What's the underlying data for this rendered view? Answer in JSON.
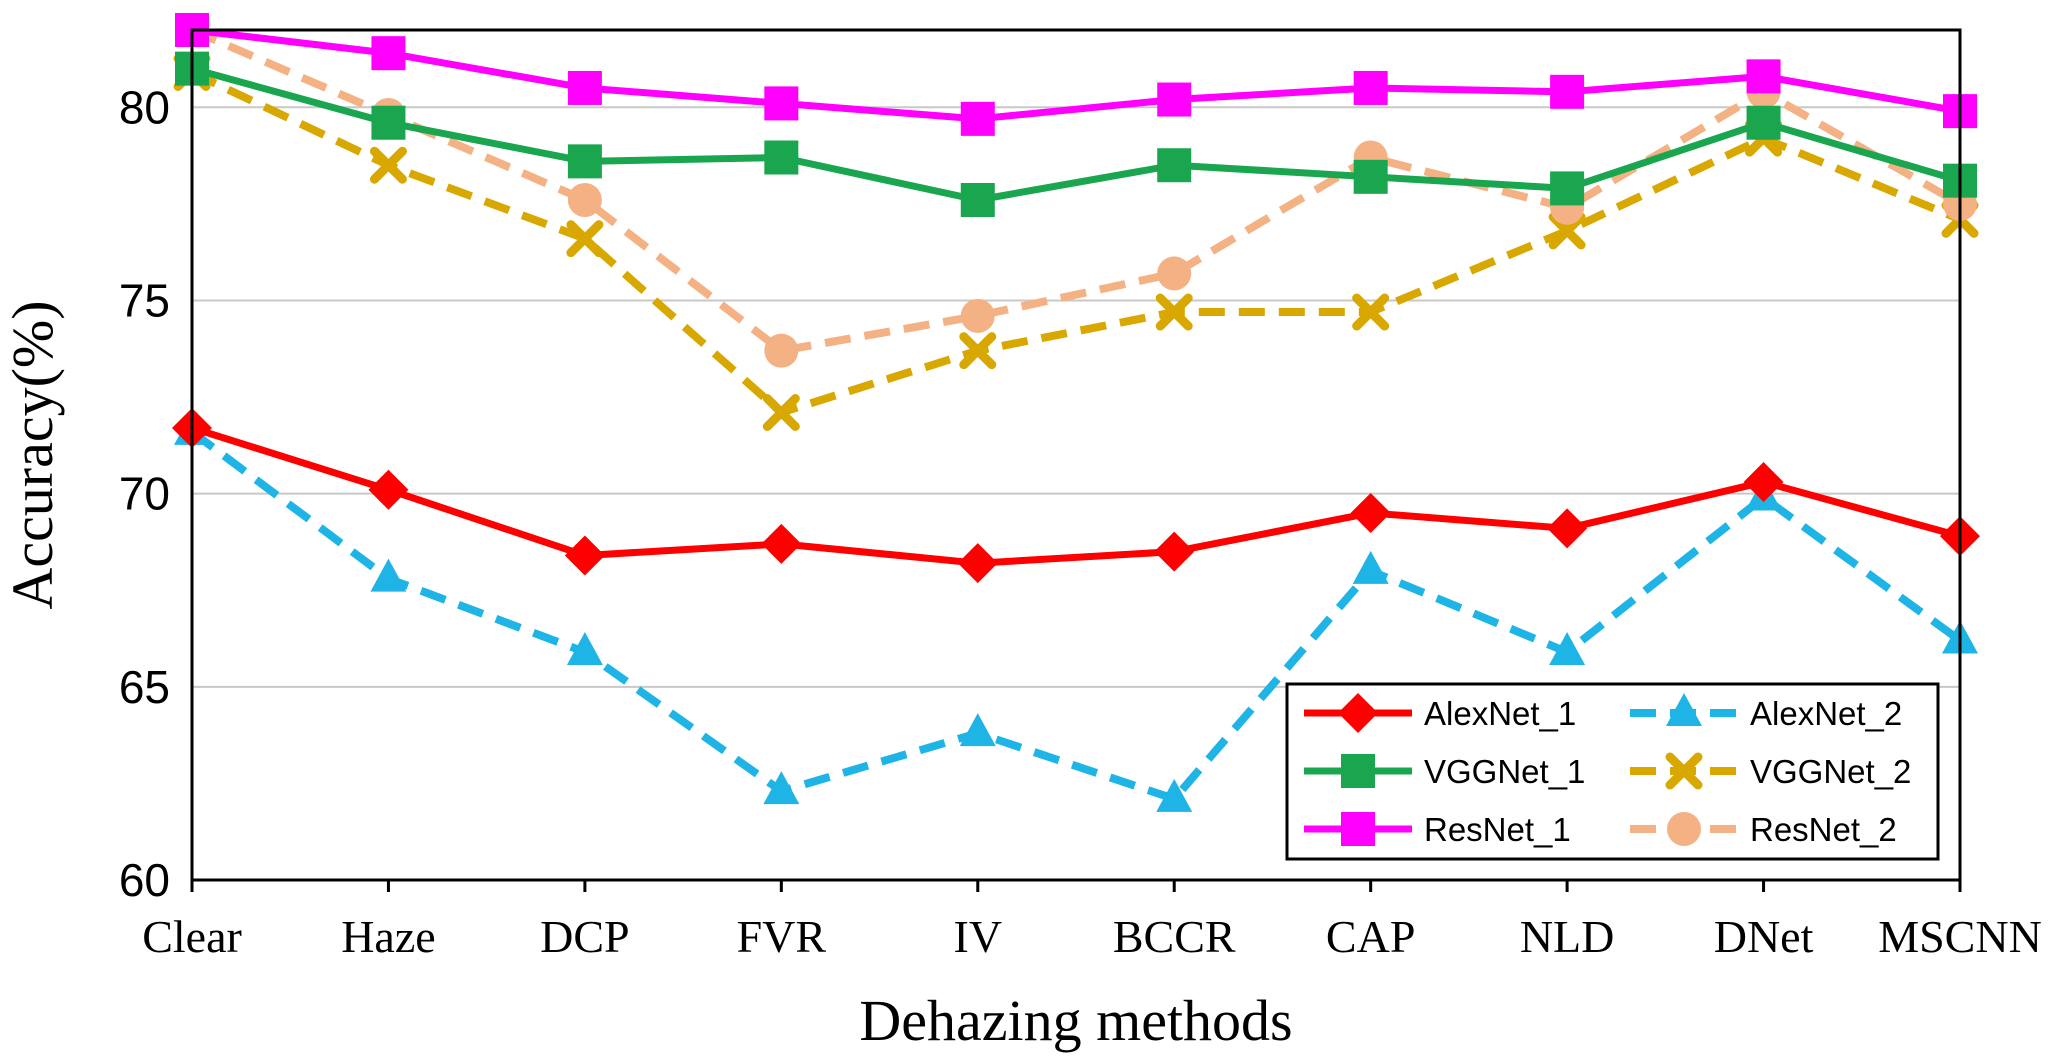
{
  "chart_data": {
    "type": "line",
    "title": "",
    "xlabel": "Dehazing methods",
    "ylabel": "Accuracy(%)",
    "ylim": [
      60,
      82
    ],
    "yticks": [
      60,
      65,
      70,
      75,
      80
    ],
    "grid": "horizontal",
    "legend_position": "bottom-right",
    "categories": [
      "Clear",
      "Haze",
      "DCP",
      "FVR",
      "IV",
      "BCCR",
      "CAP",
      "NLD",
      "DNet",
      "MSCNN"
    ],
    "series": [
      {
        "name": "AlexNet_1",
        "color": "#ff0000",
        "dashed": false,
        "marker": "diamond",
        "values": [
          71.7,
          70.1,
          68.4,
          68.7,
          68.2,
          68.5,
          69.5,
          69.1,
          70.3,
          68.9
        ]
      },
      {
        "name": "AlexNet_2",
        "color": "#1fb4e6",
        "dashed": true,
        "marker": "triangle",
        "values": [
          71.6,
          67.8,
          65.9,
          62.3,
          63.8,
          62.1,
          68.0,
          65.9,
          69.9,
          66.2
        ]
      },
      {
        "name": "VGGNet_1",
        "color": "#1aa64f",
        "dashed": false,
        "marker": "square",
        "values": [
          81.0,
          79.6,
          78.6,
          78.7,
          77.6,
          78.5,
          78.2,
          77.9,
          79.6,
          78.1
        ]
      },
      {
        "name": "VGGNet_2",
        "color": "#d9a800",
        "dashed": true,
        "marker": "x",
        "values": [
          80.9,
          78.5,
          76.6,
          72.1,
          73.7,
          74.7,
          74.7,
          76.8,
          79.2,
          77.1
        ]
      },
      {
        "name": "ResNet_1",
        "color": "#ff00ff",
        "dashed": false,
        "marker": "square",
        "values": [
          82.0,
          81.4,
          80.5,
          80.1,
          79.7,
          80.2,
          80.5,
          80.4,
          80.8,
          79.9
        ]
      },
      {
        "name": "ResNet_2",
        "color": "#f4b183",
        "dashed": true,
        "marker": "circle",
        "values": [
          82.0,
          79.8,
          77.6,
          73.7,
          74.6,
          75.7,
          78.7,
          77.4,
          80.4,
          77.5
        ]
      }
    ]
  }
}
